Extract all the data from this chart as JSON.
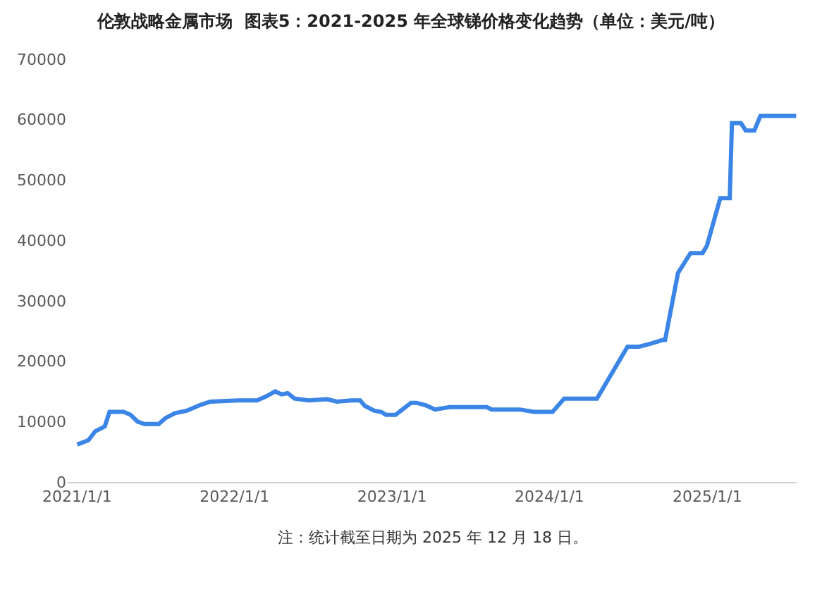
{
  "chart_data": {
    "type": "line",
    "title": "伦敦战略金属市场  图表5：2021-2025 年全球锑价格变化趋势（单位：美元/吨）",
    "x": [
      "2021-01-01",
      "2021-01-27",
      "2021-02-12",
      "2021-03-06",
      "2021-03-17",
      "2021-04-19",
      "2021-05-05",
      "2021-05-21",
      "2021-06-06",
      "2021-07-09",
      "2021-07-25",
      "2021-08-16",
      "2021-09-12",
      "2021-10-15",
      "2021-11-06",
      "2022-01-10",
      "2022-02-22",
      "2022-03-16",
      "2022-04-05",
      "2022-04-20",
      "2022-05-04",
      "2022-05-20",
      "2022-06-22",
      "2022-08-04",
      "2022-08-26",
      "2022-09-28",
      "2022-10-19",
      "2022-10-30",
      "2022-11-21",
      "2022-12-07",
      "2022-12-18",
      "2023-01-09",
      "2023-01-25",
      "2023-02-14",
      "2023-02-27",
      "2023-03-20",
      "2023-04-11",
      "2023-05-14",
      "2023-08-09",
      "2023-08-20",
      "2023-10-24",
      "2023-11-26",
      "2024-01-08",
      "2024-02-04",
      "2024-04-20",
      "2024-06-30",
      "2024-07-27",
      "2024-08-23",
      "2024-09-19",
      "2024-09-25",
      "2024-10-25",
      "2024-11-23",
      "2024-12-21",
      "2024-12-31",
      "2025-01-31",
      "2025-02-22",
      "2025-02-27",
      "2025-03-20",
      "2025-03-31",
      "2025-04-20",
      "2025-05-04",
      "2025-07-26"
    ],
    "series": [
      {
        "color": "#3a85e6",
        "values": [
          6200,
          6900,
          8400,
          9200,
          11600,
          11600,
          11100,
          10000,
          9600,
          9600,
          10600,
          11400,
          11800,
          12800,
          13300,
          13500,
          13500,
          14200,
          15000,
          14500,
          14700,
          13800,
          13500,
          13700,
          13300,
          13500,
          13500,
          12600,
          11800,
          11600,
          11100,
          11100,
          12000,
          13100,
          13100,
          12700,
          12000,
          12400,
          12400,
          12000,
          12000,
          11600,
          11600,
          13800,
          13800,
          22400,
          22400,
          22900,
          23500,
          23500,
          34600,
          37900,
          37900,
          39100,
          47000,
          47000,
          59400,
          59400,
          58200,
          58200,
          60600,
          60600
        ]
      }
    ],
    "xlim": [
      "2020-12-10",
      "2025-07-27"
    ],
    "xticks": [
      {
        "value": "2021-01-01",
        "label": "2021/1/1"
      },
      {
        "value": "2022-01-01",
        "label": "2022/1/1"
      },
      {
        "value": "2023-01-01",
        "label": "2023/1/1"
      },
      {
        "value": "2024-01-01",
        "label": "2024/1/1"
      },
      {
        "value": "2025-01-01",
        "label": "2025/1/1"
      }
    ],
    "ylim": [
      0,
      70000
    ],
    "yticks": [
      0,
      10000,
      20000,
      30000,
      40000,
      50000,
      60000,
      70000
    ],
    "marker": "none",
    "line_style": "solid",
    "annotations": [
      "注：统计截至日期为 2025 年 12 月 18 日。"
    ]
  }
}
